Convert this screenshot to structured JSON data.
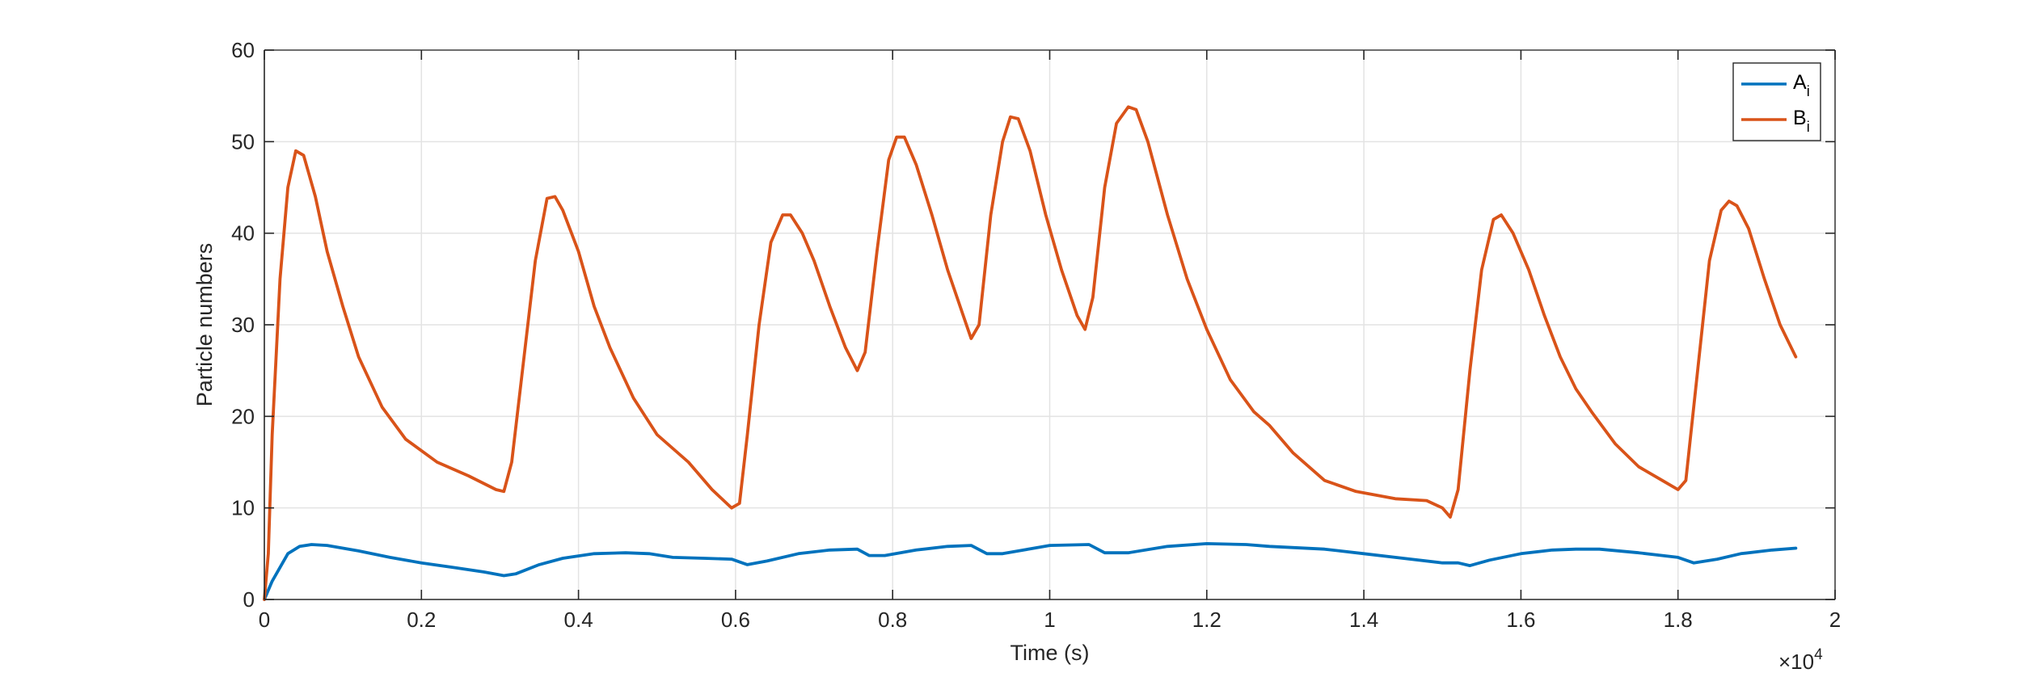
{
  "chart_data": {
    "type": "line",
    "xlabel": "Time (s)",
    "ylabel": "Particle numbers",
    "x_exponent": "×10^4",
    "x_exponent_base": "×10",
    "x_exponent_power": "4",
    "xlim": [
      0,
      2
    ],
    "ylim": [
      0,
      60
    ],
    "x_ticks": [
      0,
      0.2,
      0.4,
      0.6,
      0.8,
      1,
      1.2,
      1.4,
      1.6,
      1.8,
      2
    ],
    "x_tick_labels": [
      "0",
      "0.2",
      "0.4",
      "0.6",
      "0.8",
      "1",
      "1.2",
      "1.4",
      "1.6",
      "1.8",
      "2"
    ],
    "y_ticks": [
      0,
      10,
      20,
      30,
      40,
      50,
      60
    ],
    "y_tick_labels": [
      "0",
      "10",
      "20",
      "30",
      "40",
      "50",
      "60"
    ],
    "grid": true,
    "legend_position": "top-right",
    "series": [
      {
        "name": "A",
        "name_subscript": "i",
        "color": "#0072BD",
        "points": [
          [
            0,
            0
          ],
          [
            0.01,
            2
          ],
          [
            0.02,
            3.5
          ],
          [
            0.03,
            5
          ],
          [
            0.045,
            5.8
          ],
          [
            0.06,
            6.0
          ],
          [
            0.08,
            5.9
          ],
          [
            0.12,
            5.3
          ],
          [
            0.16,
            4.6
          ],
          [
            0.2,
            4.0
          ],
          [
            0.24,
            3.5
          ],
          [
            0.28,
            3.0
          ],
          [
            0.305,
            2.6
          ],
          [
            0.32,
            2.8
          ],
          [
            0.35,
            3.8
          ],
          [
            0.38,
            4.5
          ],
          [
            0.42,
            5.0
          ],
          [
            0.46,
            5.1
          ],
          [
            0.49,
            5.0
          ],
          [
            0.52,
            4.6
          ],
          [
            0.56,
            4.5
          ],
          [
            0.595,
            4.4
          ],
          [
            0.615,
            3.8
          ],
          [
            0.64,
            4.2
          ],
          [
            0.68,
            5.0
          ],
          [
            0.72,
            5.4
          ],
          [
            0.755,
            5.5
          ],
          [
            0.77,
            4.8
          ],
          [
            0.79,
            4.8
          ],
          [
            0.83,
            5.4
          ],
          [
            0.87,
            5.8
          ],
          [
            0.9,
            5.9
          ],
          [
            0.92,
            5.0
          ],
          [
            0.94,
            5.0
          ],
          [
            0.98,
            5.6
          ],
          [
            1.0,
            5.9
          ],
          [
            1.05,
            6.0
          ],
          [
            1.07,
            5.1
          ],
          [
            1.1,
            5.1
          ],
          [
            1.15,
            5.8
          ],
          [
            1.2,
            6.1
          ],
          [
            1.25,
            6.0
          ],
          [
            1.28,
            5.8
          ],
          [
            1.35,
            5.5
          ],
          [
            1.4,
            5.0
          ],
          [
            1.45,
            4.5
          ],
          [
            1.5,
            4.0
          ],
          [
            1.52,
            4.0
          ],
          [
            1.535,
            3.7
          ],
          [
            1.56,
            4.3
          ],
          [
            1.6,
            5.0
          ],
          [
            1.64,
            5.4
          ],
          [
            1.67,
            5.5
          ],
          [
            1.7,
            5.5
          ],
          [
            1.75,
            5.1
          ],
          [
            1.8,
            4.6
          ],
          [
            1.82,
            4.0
          ],
          [
            1.85,
            4.4
          ],
          [
            1.88,
            5.0
          ],
          [
            1.92,
            5.4
          ],
          [
            1.95,
            5.6
          ]
        ]
      },
      {
        "name": "B",
        "name_subscript": "i",
        "color": "#D95319",
        "points": [
          [
            0,
            0
          ],
          [
            0.005,
            5
          ],
          [
            0.01,
            18
          ],
          [
            0.02,
            35
          ],
          [
            0.03,
            45
          ],
          [
            0.04,
            49
          ],
          [
            0.05,
            48.5
          ],
          [
            0.065,
            44
          ],
          [
            0.08,
            38
          ],
          [
            0.1,
            32
          ],
          [
            0.12,
            26.5
          ],
          [
            0.15,
            21
          ],
          [
            0.18,
            17.5
          ],
          [
            0.22,
            15
          ],
          [
            0.26,
            13.5
          ],
          [
            0.295,
            12
          ],
          [
            0.305,
            11.8
          ],
          [
            0.315,
            15
          ],
          [
            0.33,
            26
          ],
          [
            0.345,
            37
          ],
          [
            0.36,
            43.8
          ],
          [
            0.37,
            44
          ],
          [
            0.38,
            42.5
          ],
          [
            0.4,
            38
          ],
          [
            0.42,
            32
          ],
          [
            0.44,
            27.5
          ],
          [
            0.47,
            22
          ],
          [
            0.5,
            18
          ],
          [
            0.52,
            16.5
          ],
          [
            0.54,
            15
          ],
          [
            0.57,
            12
          ],
          [
            0.595,
            10
          ],
          [
            0.605,
            10.5
          ],
          [
            0.615,
            18
          ],
          [
            0.63,
            30
          ],
          [
            0.645,
            39
          ],
          [
            0.66,
            42
          ],
          [
            0.67,
            42
          ],
          [
            0.685,
            40
          ],
          [
            0.7,
            37
          ],
          [
            0.72,
            32
          ],
          [
            0.74,
            27.5
          ],
          [
            0.755,
            25
          ],
          [
            0.765,
            27
          ],
          [
            0.78,
            38
          ],
          [
            0.795,
            48
          ],
          [
            0.805,
            50.5
          ],
          [
            0.815,
            50.5
          ],
          [
            0.83,
            47.5
          ],
          [
            0.85,
            42
          ],
          [
            0.87,
            36
          ],
          [
            0.89,
            31
          ],
          [
            0.9,
            28.5
          ],
          [
            0.91,
            30
          ],
          [
            0.925,
            42
          ],
          [
            0.94,
            50
          ],
          [
            0.95,
            52.7
          ],
          [
            0.96,
            52.5
          ],
          [
            0.975,
            49
          ],
          [
            0.995,
            42
          ],
          [
            1.015,
            36
          ],
          [
            1.035,
            31
          ],
          [
            1.045,
            29.5
          ],
          [
            1.055,
            33
          ],
          [
            1.07,
            45
          ],
          [
            1.085,
            52
          ],
          [
            1.1,
            53.8
          ],
          [
            1.11,
            53.5
          ],
          [
            1.125,
            50
          ],
          [
            1.15,
            42
          ],
          [
            1.175,
            35
          ],
          [
            1.2,
            29.5
          ],
          [
            1.23,
            24
          ],
          [
            1.26,
            20.5
          ],
          [
            1.28,
            19
          ],
          [
            1.31,
            16
          ],
          [
            1.35,
            13
          ],
          [
            1.39,
            11.8
          ],
          [
            1.44,
            11
          ],
          [
            1.48,
            10.8
          ],
          [
            1.5,
            10
          ],
          [
            1.51,
            9
          ],
          [
            1.52,
            12
          ],
          [
            1.535,
            25
          ],
          [
            1.55,
            36
          ],
          [
            1.565,
            41.5
          ],
          [
            1.575,
            42
          ],
          [
            1.59,
            40
          ],
          [
            1.61,
            36
          ],
          [
            1.63,
            31
          ],
          [
            1.65,
            26.5
          ],
          [
            1.67,
            23
          ],
          [
            1.69,
            20.5
          ],
          [
            1.72,
            17
          ],
          [
            1.75,
            14.5
          ],
          [
            1.78,
            13
          ],
          [
            1.8,
            12
          ],
          [
            1.81,
            13
          ],
          [
            1.825,
            25
          ],
          [
            1.84,
            37
          ],
          [
            1.855,
            42.5
          ],
          [
            1.865,
            43.5
          ],
          [
            1.875,
            43
          ],
          [
            1.89,
            40.5
          ],
          [
            1.91,
            35
          ],
          [
            1.93,
            30
          ],
          [
            1.95,
            26.5
          ]
        ]
      }
    ]
  }
}
